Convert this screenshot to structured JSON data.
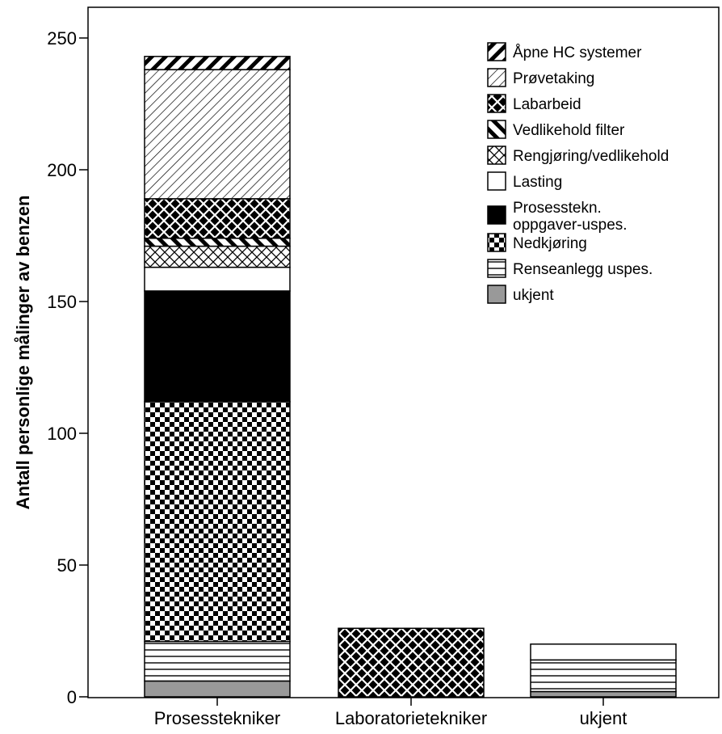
{
  "chart_data": {
    "type": "bar",
    "stacked": true,
    "title": "",
    "xlabel": "",
    "ylabel": "Antall personlige målinger av benzen",
    "ylim": [
      0,
      260
    ],
    "yticks": [
      0,
      50,
      100,
      150,
      200,
      250
    ],
    "categories": [
      "Prosesstekniker",
      "Laboratorietekniker",
      "ukjent"
    ],
    "legend_position": "top-right",
    "grid": false,
    "series": [
      {
        "name": "ukjent",
        "pattern": "solid-gray",
        "values": [
          6,
          0,
          2
        ]
      },
      {
        "name": "Renseanlegg uspes.",
        "pattern": "horizontal-lines",
        "values": [
          15,
          0,
          12
        ]
      },
      {
        "name": "Nedkjøring",
        "pattern": "checker",
        "values": [
          91,
          0,
          0
        ]
      },
      {
        "name": "Prosesstekn.\noppgaver-uspes.",
        "pattern": "solid-black",
        "values": [
          42,
          0,
          0
        ]
      },
      {
        "name": "Lasting",
        "pattern": "white",
        "values": [
          9,
          0,
          6
        ]
      },
      {
        "name": "Rengjøring/vedlikehold",
        "pattern": "crosshatch",
        "values": [
          8,
          0,
          0
        ]
      },
      {
        "name": "Vedlikehold filter",
        "pattern": "bold-diagonal",
        "values": [
          3,
          0,
          0
        ]
      },
      {
        "name": "Labarbeid",
        "pattern": "dark-crosshatch",
        "values": [
          15,
          26,
          0
        ]
      },
      {
        "name": "Prøvetaking",
        "pattern": "thin-backdiagonal",
        "values": [
          49,
          0,
          0
        ]
      },
      {
        "name": "Åpne HC systemer",
        "pattern": "bold-backdiagonal",
        "values": [
          5,
          0,
          0
        ]
      }
    ],
    "colors": {
      "gray": "#999999",
      "black": "#000000",
      "white": "#ffffff"
    }
  }
}
